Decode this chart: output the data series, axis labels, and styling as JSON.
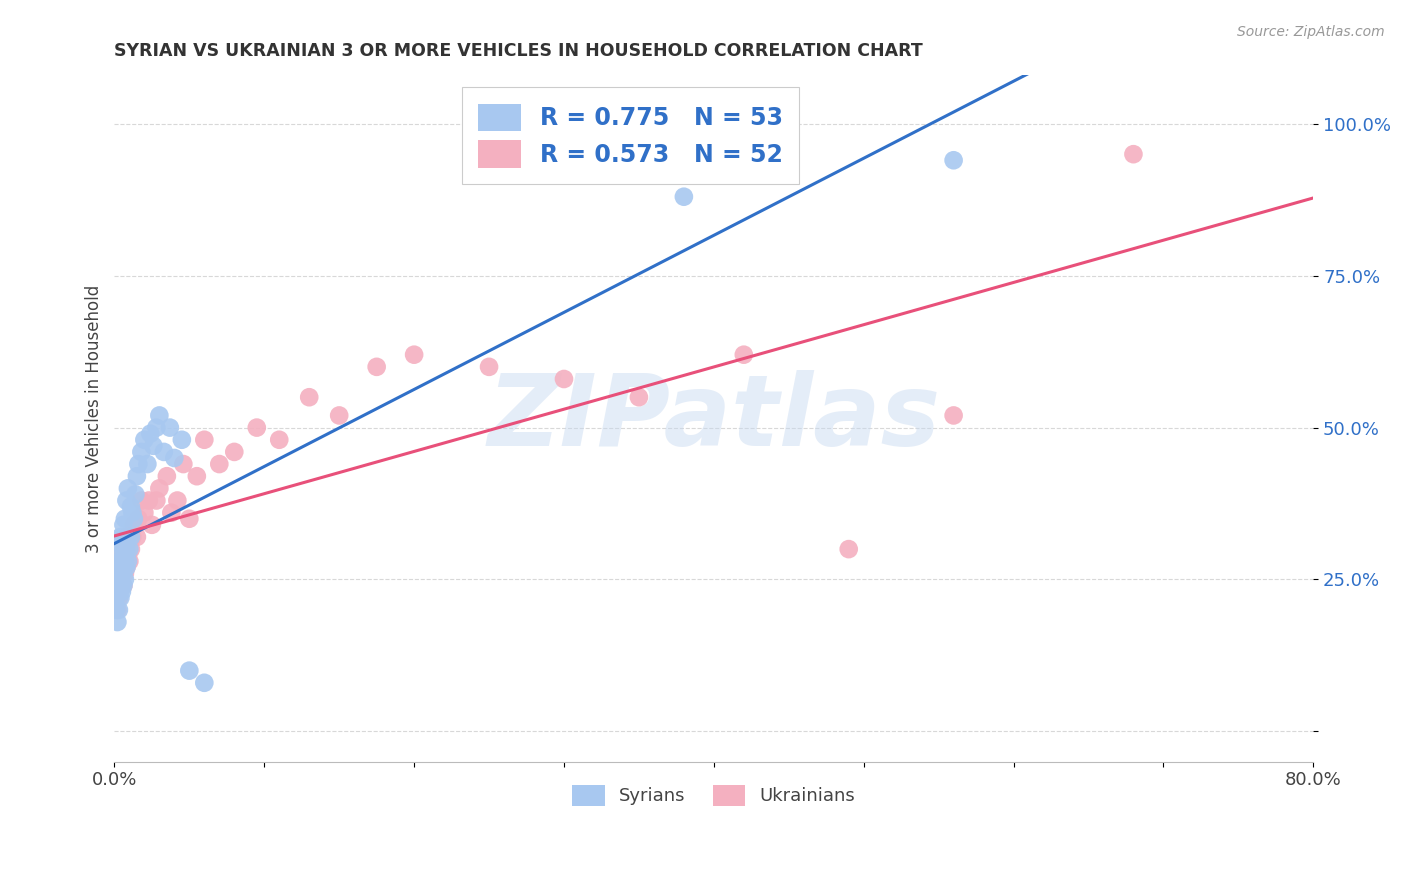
{
  "title": "SYRIAN VS UKRAINIAN 3 OR MORE VEHICLES IN HOUSEHOLD CORRELATION CHART",
  "source": "Source: ZipAtlas.com",
  "ylabel": "3 or more Vehicles in Household",
  "watermark": "ZIPatlas",
  "blue_R": 0.775,
  "blue_N": 53,
  "pink_R": 0.573,
  "pink_N": 52,
  "blue_color": "#A8C8F0",
  "pink_color": "#F4B0C0",
  "blue_line_color": "#3070C8",
  "pink_line_color": "#E8507A",
  "legend_label_blue": "Syrians",
  "legend_label_pink": "Ukrainians",
  "blue_scatter_x": [
    0.001,
    0.001,
    0.002,
    0.002,
    0.002,
    0.003,
    0.003,
    0.003,
    0.003,
    0.004,
    0.004,
    0.004,
    0.004,
    0.005,
    0.005,
    0.005,
    0.005,
    0.006,
    0.006,
    0.006,
    0.006,
    0.007,
    0.007,
    0.007,
    0.008,
    0.008,
    0.008,
    0.009,
    0.009,
    0.009,
    0.01,
    0.011,
    0.011,
    0.012,
    0.013,
    0.014,
    0.015,
    0.016,
    0.018,
    0.02,
    0.022,
    0.024,
    0.026,
    0.028,
    0.03,
    0.033,
    0.037,
    0.04,
    0.045,
    0.05,
    0.06,
    0.38,
    0.56
  ],
  "blue_scatter_y": [
    0.2,
    0.22,
    0.18,
    0.24,
    0.26,
    0.2,
    0.24,
    0.27,
    0.3,
    0.22,
    0.25,
    0.28,
    0.32,
    0.23,
    0.26,
    0.28,
    0.32,
    0.24,
    0.27,
    0.3,
    0.34,
    0.25,
    0.28,
    0.35,
    0.27,
    0.3,
    0.38,
    0.28,
    0.32,
    0.4,
    0.3,
    0.32,
    0.37,
    0.36,
    0.35,
    0.39,
    0.42,
    0.44,
    0.46,
    0.48,
    0.44,
    0.49,
    0.47,
    0.5,
    0.52,
    0.46,
    0.5,
    0.45,
    0.48,
    0.1,
    0.08,
    0.88,
    0.94
  ],
  "pink_scatter_x": [
    0.001,
    0.001,
    0.002,
    0.002,
    0.003,
    0.003,
    0.003,
    0.004,
    0.004,
    0.005,
    0.005,
    0.006,
    0.006,
    0.007,
    0.007,
    0.008,
    0.008,
    0.009,
    0.01,
    0.011,
    0.012,
    0.013,
    0.015,
    0.016,
    0.018,
    0.02,
    0.023,
    0.025,
    0.028,
    0.03,
    0.035,
    0.038,
    0.042,
    0.046,
    0.05,
    0.055,
    0.06,
    0.07,
    0.08,
    0.095,
    0.11,
    0.13,
    0.15,
    0.175,
    0.2,
    0.25,
    0.3,
    0.35,
    0.42,
    0.49,
    0.56,
    0.68
  ],
  "pink_scatter_y": [
    0.22,
    0.25,
    0.2,
    0.26,
    0.22,
    0.25,
    0.28,
    0.24,
    0.27,
    0.26,
    0.29,
    0.24,
    0.28,
    0.26,
    0.3,
    0.27,
    0.32,
    0.29,
    0.28,
    0.3,
    0.32,
    0.34,
    0.32,
    0.35,
    0.38,
    0.36,
    0.38,
    0.34,
    0.38,
    0.4,
    0.42,
    0.36,
    0.38,
    0.44,
    0.35,
    0.42,
    0.48,
    0.44,
    0.46,
    0.5,
    0.48,
    0.55,
    0.52,
    0.6,
    0.62,
    0.6,
    0.58,
    0.55,
    0.62,
    0.3,
    0.52,
    0.95
  ],
  "xmin": 0.0,
  "xmax": 0.8,
  "ymin": -0.05,
  "ymax": 1.08,
  "xticks": [
    0.0,
    0.1,
    0.2,
    0.3,
    0.4,
    0.5,
    0.6,
    0.7,
    0.8
  ],
  "yticks": [
    0.0,
    0.25,
    0.5,
    0.75,
    1.0
  ],
  "ytick_labels": [
    "",
    "25.0%",
    "50.0%",
    "75.0%",
    "100.0%"
  ],
  "grid_color": "#D8D8D8",
  "bg_color": "#FFFFFF"
}
